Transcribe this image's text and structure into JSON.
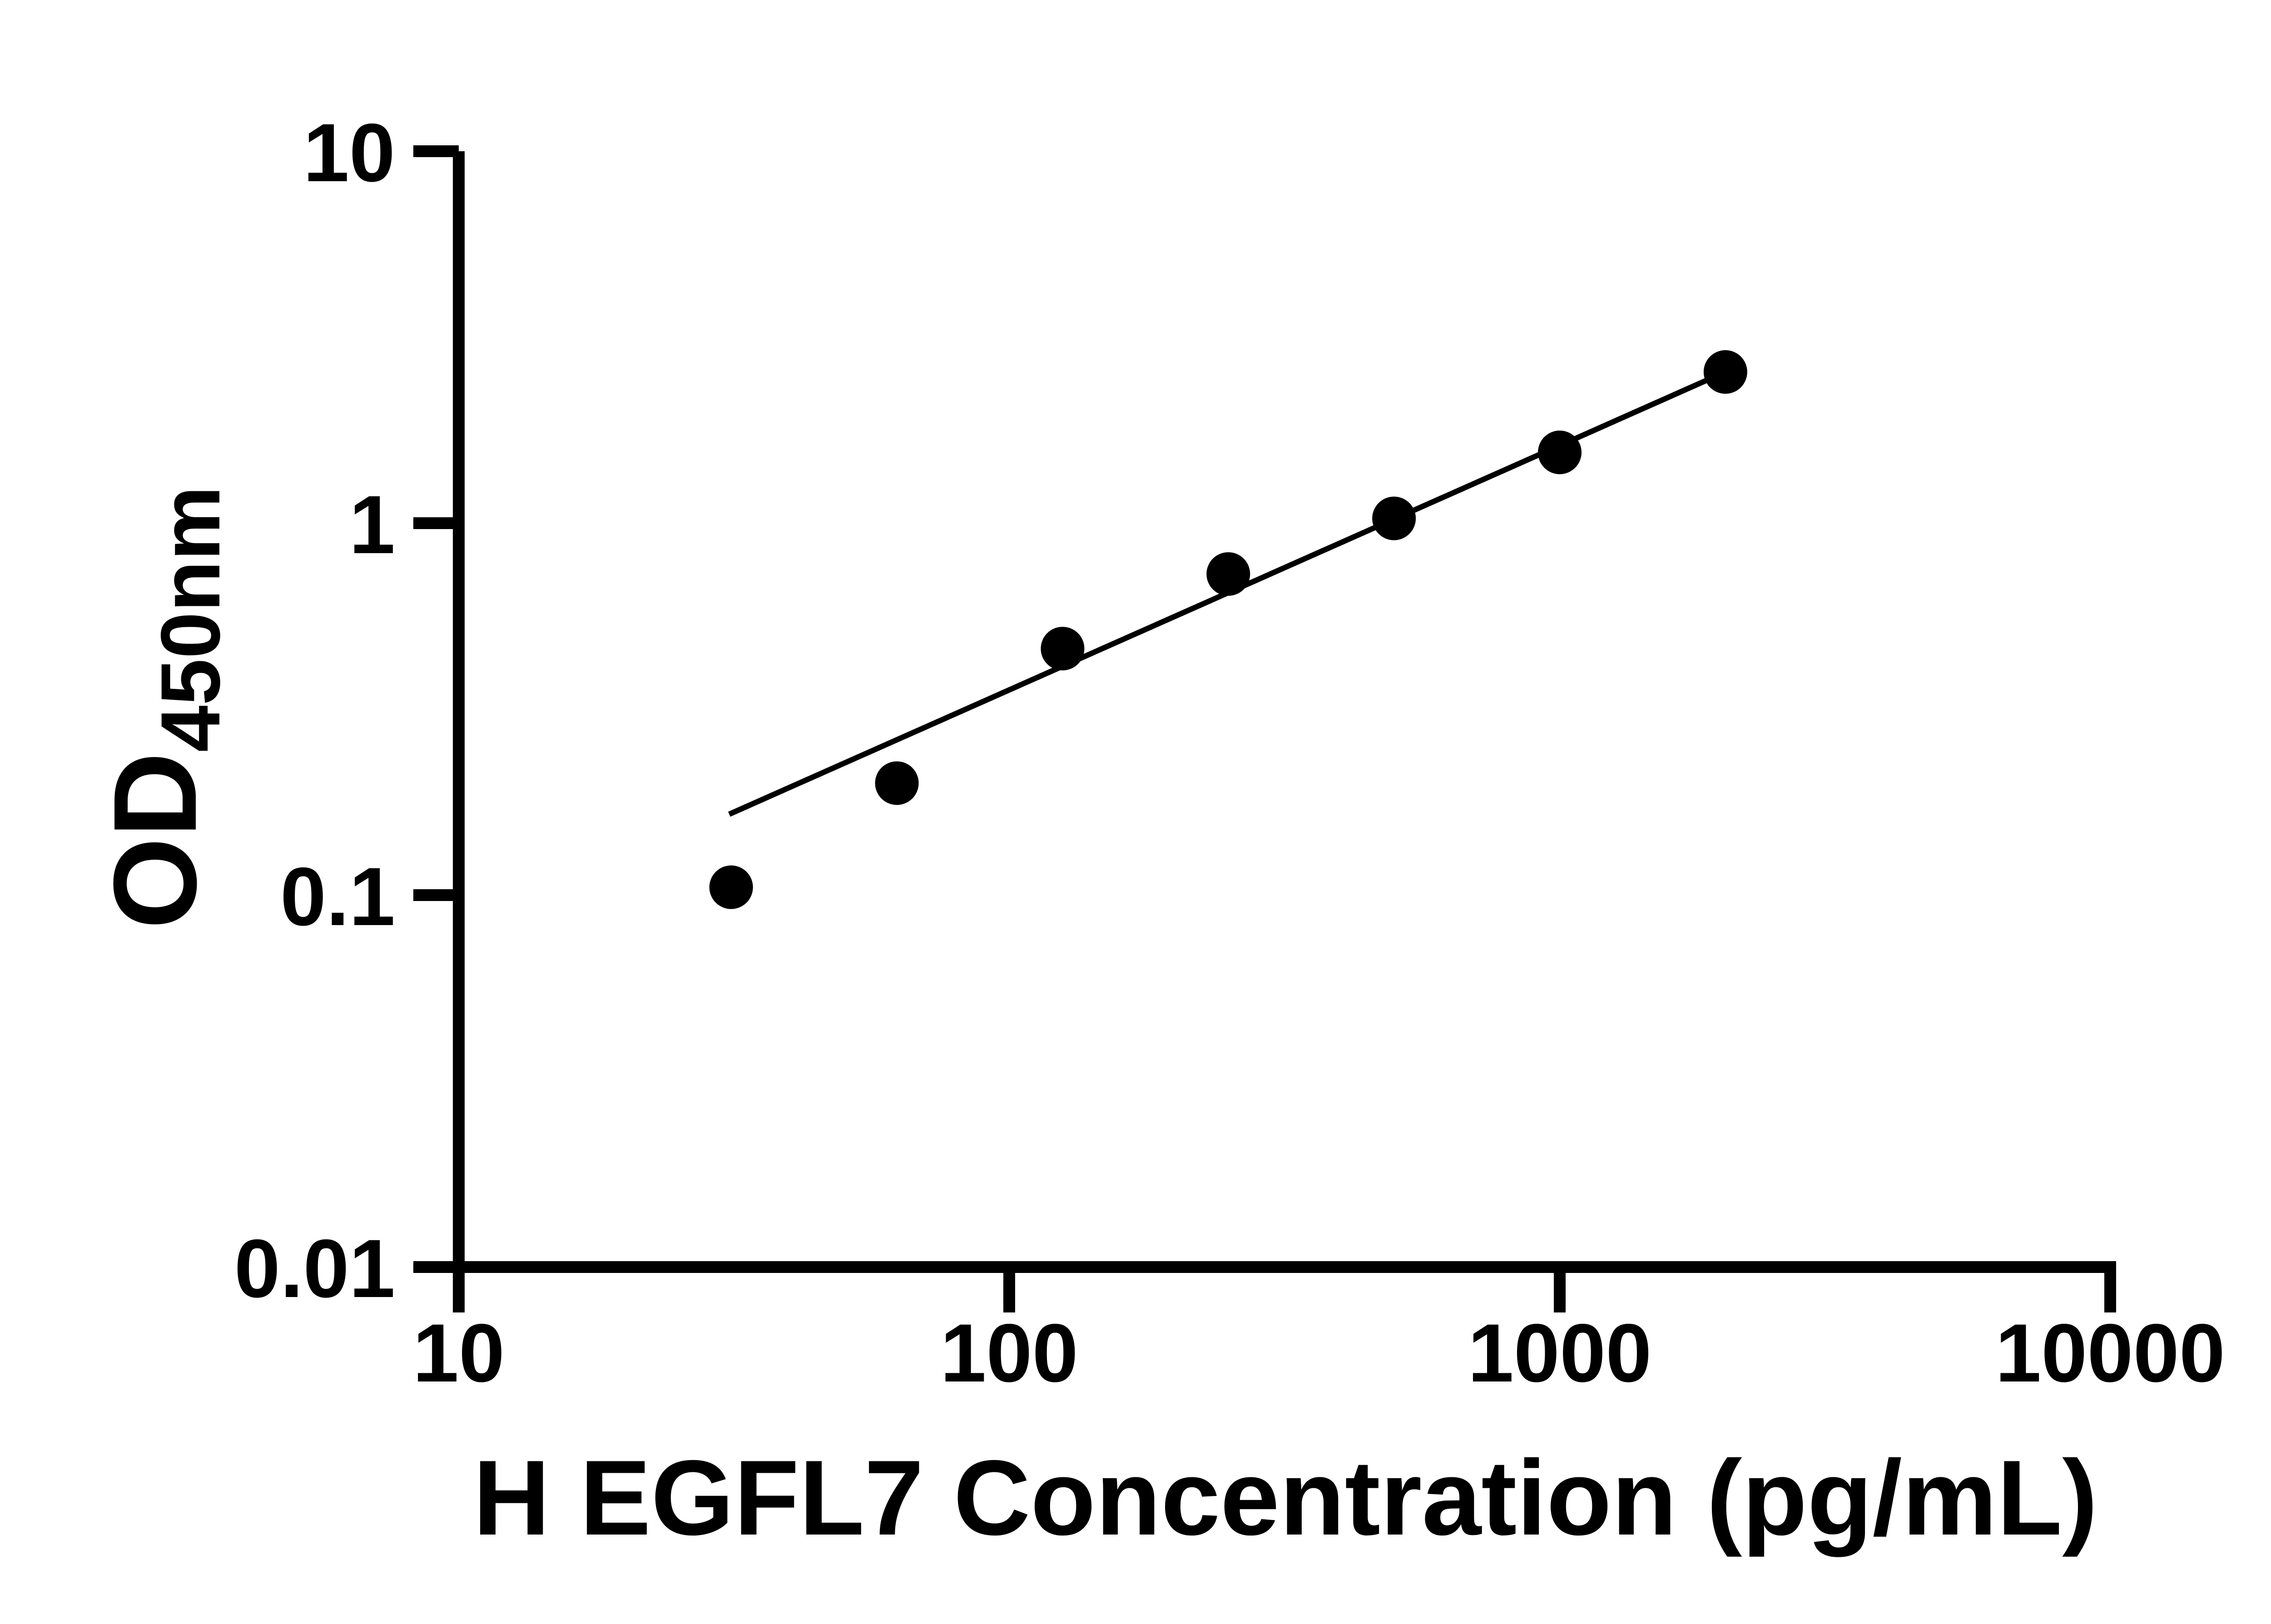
{
  "figure": {
    "background_color": "#ffffff",
    "foreground_color": "#000000"
  },
  "chart_data": {
    "type": "scatter",
    "title": "",
    "xlabel": "H EGFL7 Concentration (pg/mL)",
    "ylabel_main": "OD",
    "ylabel_sub": "450nm",
    "x_scale": "log",
    "y_scale": "log",
    "xlim": [
      10,
      10000
    ],
    "ylim": [
      0.01,
      10
    ],
    "grid": false,
    "legend": "none",
    "x_ticks": [
      10,
      100,
      1000,
      10000
    ],
    "x_tick_labels": [
      "10",
      "100",
      "1000",
      "10000"
    ],
    "y_ticks": [
      10,
      1,
      0.1,
      0.01
    ],
    "y_tick_labels": [
      "10",
      "1",
      "0.1",
      "0.01"
    ],
    "series": [
      {
        "name": "standard-curve-points",
        "marker": "circle",
        "color": "#000000",
        "x": [
          31.25,
          62.5,
          125,
          250,
          500,
          1000,
          2000
        ],
        "y": [
          0.105,
          0.2,
          0.46,
          0.73,
          1.03,
          1.55,
          2.55
        ]
      }
    ],
    "trend_line": {
      "color": "#000000",
      "x1": 31,
      "y1": 0.165,
      "x2": 2000,
      "y2": 2.55
    }
  }
}
